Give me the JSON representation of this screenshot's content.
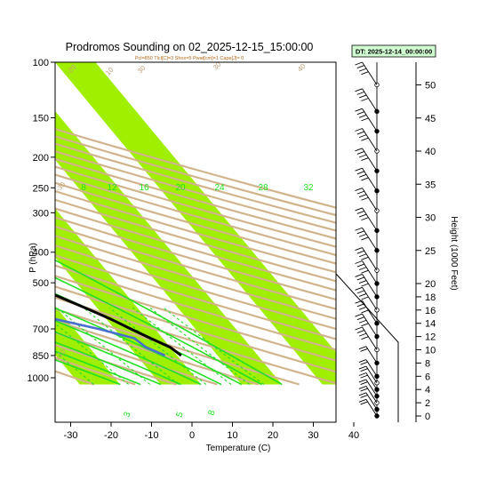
{
  "chart_data": {
    "type": "skew-t",
    "title": "Prodromos Sounding on 02_2025-12-15_15:00:00",
    "subtitle": "Pcl=850 Tlcl[C]=3 Shox=5 Pwat[cm]=1 Cape[J]= 0",
    "time_badge": "DT: 2025-12-14_00:00:00",
    "xlabel": "Temperature (C)",
    "ylabel": "P (hPa)",
    "y2label": "Height (1000 Feet)",
    "x_ticks": [
      "-30",
      "-20",
      "-10",
      "0",
      "10",
      "20",
      "30",
      "40"
    ],
    "x_tick_values": [
      -30,
      -20,
      -10,
      0,
      10,
      20,
      30,
      40
    ],
    "xlim": [
      -33,
      52
    ],
    "p_ticks": [
      "100",
      "150",
      "200",
      "250",
      "300",
      "400",
      "500",
      "700",
      "850",
      "1000"
    ],
    "p_tick_values": [
      100,
      150,
      200,
      250,
      300,
      400,
      500,
      700,
      850,
      1000
    ],
    "plim": [
      100,
      1050
    ],
    "height_ticks": [
      "0",
      "2",
      "4",
      "6",
      "8",
      "10",
      "12",
      "14",
      "16",
      "18",
      "20",
      "25",
      "30",
      "35",
      "40",
      "45",
      "50"
    ],
    "height_tick_values": [
      0,
      2,
      4,
      6,
      8,
      10,
      12,
      14,
      16,
      18,
      20,
      25,
      30,
      35,
      40,
      45,
      50
    ],
    "moist_adiabat_labels": [
      "8",
      "12",
      "16",
      "20",
      "24",
      "28",
      "32"
    ],
    "moist_adiabat_label_values": [
      8,
      12,
      16,
      20,
      24,
      28,
      32
    ],
    "dry_adiabat_labels": [
      "-20",
      "10",
      "30",
      "-30",
      "-10",
      "50",
      "40",
      "30",
      "20",
      "10",
      "0",
      "-10",
      "-20",
      "-30"
    ],
    "mixing_ratio_labels": [
      "3",
      "5",
      "8"
    ],
    "series": [
      {
        "name": "Temperature",
        "color": "#000000",
        "p": [
          850,
          800,
          750,
          700,
          650,
          600,
          550,
          500,
          450,
          400,
          350,
          300,
          250,
          200,
          175,
          150,
          140,
          130,
          120,
          110,
          100
        ],
        "t": [
          11,
          10,
          7,
          4,
          1,
          -3,
          -7.5,
          -12.5,
          -18,
          -24,
          -30,
          -36,
          -42,
          -46,
          -51,
          -54,
          -58,
          -61,
          -64,
          -68,
          -70
        ]
      },
      {
        "name": "Dewpoint",
        "color": "#4a6fd0",
        "p": [
          850,
          800,
          750,
          700,
          650,
          600,
          570,
          500,
          450,
          400,
          350,
          300,
          250,
          200,
          175,
          150,
          140,
          130,
          120,
          110,
          100
        ],
        "t": [
          7,
          4,
          3,
          -4,
          -13,
          -23,
          -30,
          -26,
          -35,
          -46,
          -55,
          -63,
          -68,
          -66,
          -70,
          -75,
          -75,
          -74,
          -72,
          -71,
          -69
        ]
      }
    ],
    "wind_barbs": {
      "color": "#000000",
      "height_kft": [
        0,
        1,
        2,
        3,
        4,
        5,
        6,
        8,
        10,
        12,
        14,
        16,
        18,
        20,
        22,
        25,
        28,
        31,
        34,
        37,
        40,
        43,
        46,
        50
      ]
    },
    "colors": {
      "dry_adiabat": "#d2b48c",
      "moist_adiabat": "#22e022",
      "mixing_ratio": "#22e022",
      "isotherm_band": "#a0ee00",
      "temperature": "#000000",
      "dewpoint": "#4a6fd0"
    }
  }
}
